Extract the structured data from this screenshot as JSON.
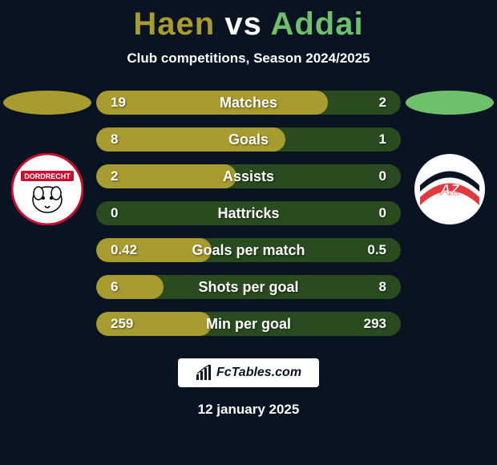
{
  "title": {
    "player1": "Haen",
    "vs": "vs",
    "player2": "Addai",
    "player1_color": "#a89b2f",
    "vs_color": "#ffffff",
    "player2_color": "#6fc06b"
  },
  "subtitle": "Club competitions, Season 2024/2025",
  "left_ellipse_color": "#a89b2f",
  "right_ellipse_color": "#6fc06b",
  "club_left": {
    "bg": "#ffffff",
    "ring": "#c8102e",
    "label": "DORDRECHT",
    "label_bg": "#c8102e",
    "label_color": "#ffffff"
  },
  "club_right": {
    "bg": "#ffffff",
    "label": "AZ",
    "stripe1": "#e03a3e",
    "stripe2": "#0a1321"
  },
  "bars": [
    {
      "label": "Matches",
      "left": "19",
      "right": "2",
      "fill_pct": 76
    },
    {
      "label": "Goals",
      "left": "8",
      "right": "1",
      "fill_pct": 62
    },
    {
      "label": "Assists",
      "left": "2",
      "right": "0",
      "fill_pct": 46
    },
    {
      "label": "Hattricks",
      "left": "0",
      "right": "0",
      "fill_pct": 0
    },
    {
      "label": "Goals per match",
      "left": "0.42",
      "right": "0.5",
      "fill_pct": 38
    },
    {
      "label": "Shots per goal",
      "left": "6",
      "right": "8",
      "fill_pct": 22
    },
    {
      "label": "Min per goal",
      "left": "259",
      "right": "293",
      "fill_pct": 38
    }
  ],
  "bar_fill_color": "#a89b2f",
  "bar_bg_color": "#294b1f",
  "brand": "FcTables.com",
  "date": "12 january 2025"
}
